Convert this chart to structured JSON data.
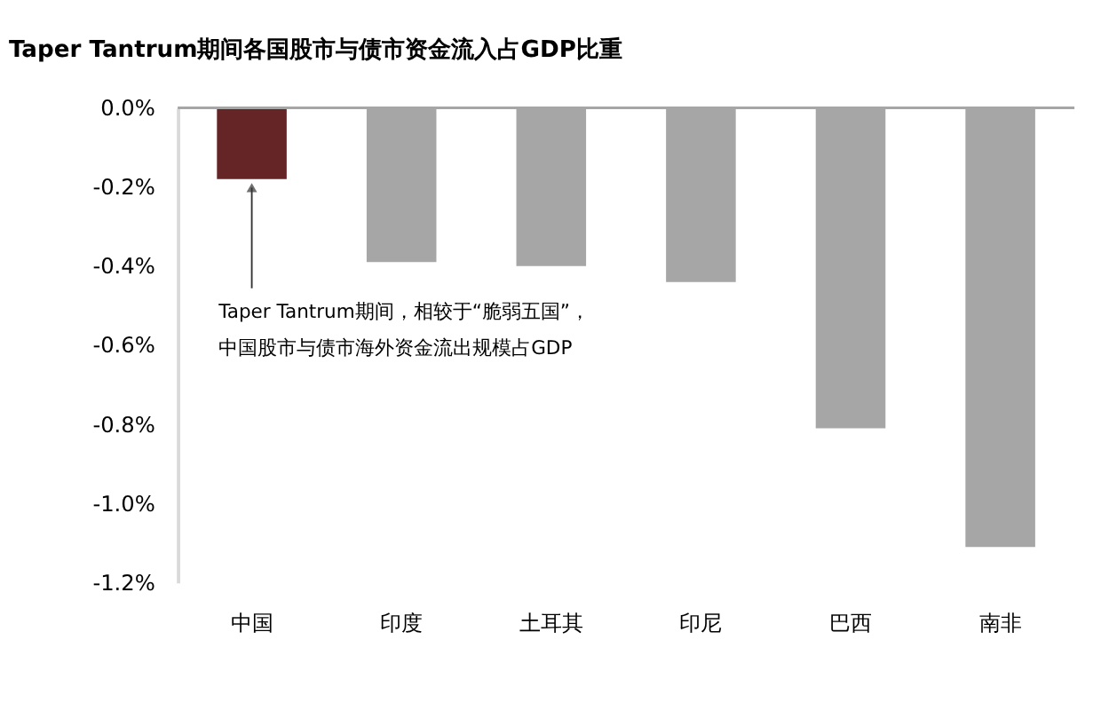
{
  "chart_data": {
    "type": "bar",
    "title": "Taper Tantrum期间各国股市与债市资金流入占GDP比重",
    "categories": [
      "中国",
      "印度",
      "土耳其",
      "印尼",
      "巴西",
      "南非"
    ],
    "values": [
      -0.18,
      -0.39,
      -0.4,
      -0.44,
      -0.81,
      -1.11
    ],
    "colors": [
      "#652527",
      "#a6a6a6",
      "#a6a6a6",
      "#a6a6a6",
      "#a6a6a6",
      "#a6a6a6"
    ],
    "ylim": [
      -1.2,
      0
    ],
    "yticks": [
      {
        "value": 0,
        "label": "0.0%"
      },
      {
        "value": -0.2,
        "label": "-0.2%"
      },
      {
        "value": -0.4,
        "label": "-0.4%"
      },
      {
        "value": -0.6,
        "label": "-0.6%"
      },
      {
        "value": -0.8,
        "label": "-0.8%"
      },
      {
        "value": -1.0,
        "label": "-1.0%"
      },
      {
        "value": -1.2,
        "label": "-1.2%"
      }
    ],
    "grid": false,
    "annotations": [
      {
        "text": "Taper Tantrum期间，相较于“脆弱五国”，中国股市与债市海外资金流出规模占GDP",
        "x": "中国",
        "y": -0.18
      }
    ]
  }
}
